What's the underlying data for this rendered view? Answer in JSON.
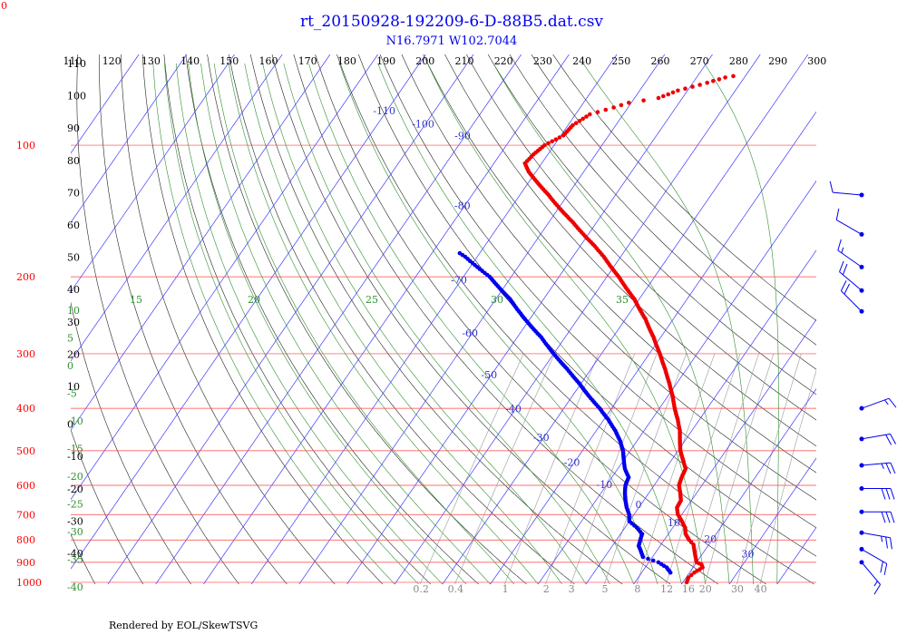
{
  "chart_data": {
    "type": "skew-t",
    "title": "rt_20150928-192209-6-D-88B5.dat.csv",
    "subtitle": "N16.7971 W102.7044",
    "footer": "Rendered by EOL/SkewTSVG",
    "corner_label": "0",
    "pressure_levels_hpa": [
      100,
      200,
      300,
      400,
      500,
      600,
      700,
      800,
      900,
      1000
    ],
    "pressure_tick_labels": [
      "100",
      "200",
      "300",
      "400",
      "500",
      "600",
      "700",
      "800",
      "900",
      "1000"
    ],
    "theta_tick_labels": [
      "110",
      "120",
      "130",
      "140",
      "150",
      "160",
      "170",
      "180",
      "190",
      "200",
      "210",
      "220",
      "230",
      "240",
      "250",
      "260",
      "270",
      "280",
      "290",
      "300"
    ],
    "temperature_isotherm_labels": [
      "-110",
      "-100",
      "-90",
      "-80",
      "-70",
      "-60",
      "-50",
      "-40",
      "-30",
      "-20",
      "-10",
      "0",
      "10",
      "20",
      "30"
    ],
    "black_left_labels": [
      "110",
      "100",
      "90",
      "80",
      "70",
      "60",
      "50",
      "40",
      "30",
      "20",
      "10",
      "0",
      "-10",
      "-20",
      "-30",
      "-40"
    ],
    "moist_adiabat_labels": [
      "10",
      "5",
      "0",
      "-5",
      "-10",
      "-15",
      "-20",
      "-25",
      "-30",
      "-35",
      "-40"
    ],
    "moist_adiabat_top_labels": [
      "15",
      "20",
      "25",
      "30",
      "35"
    ],
    "mixing_ratio_labels": [
      "0.2",
      "0.4",
      "1",
      "2",
      "3",
      "5",
      "8",
      "12",
      "16",
      "20",
      "30",
      "40"
    ],
    "temperature_profile": [
      [
        1000,
        20.8
      ],
      [
        975,
        20.5
      ],
      [
        950,
        21.0
      ],
      [
        925,
        22.0
      ],
      [
        910,
        21.3
      ],
      [
        900,
        20.0
      ],
      [
        880,
        19.2
      ],
      [
        850,
        18.0
      ],
      [
        820,
        16.8
      ],
      [
        800,
        15.2
      ],
      [
        775,
        13.6
      ],
      [
        750,
        12.6
      ],
      [
        725,
        11.0
      ],
      [
        700,
        9.2
      ],
      [
        675,
        8.0
      ],
      [
        650,
        7.8
      ],
      [
        625,
        6.6
      ],
      [
        600,
        5.2
      ],
      [
        575,
        4.6
      ],
      [
        550,
        4.2
      ],
      [
        525,
        2.4
      ],
      [
        500,
        0.5
      ],
      [
        475,
        -1.0
      ],
      [
        450,
        -2.5
      ],
      [
        425,
        -4.5
      ],
      [
        400,
        -6.8
      ],
      [
        375,
        -9.0
      ],
      [
        350,
        -11.6
      ],
      [
        325,
        -14.5
      ],
      [
        300,
        -17.8
      ],
      [
        275,
        -21.5
      ],
      [
        250,
        -25.8
      ],
      [
        225,
        -31.0
      ],
      [
        200,
        -37.5
      ],
      [
        190,
        -40.5
      ],
      [
        180,
        -43.5
      ],
      [
        170,
        -47.0
      ],
      [
        160,
        -51.0
      ],
      [
        150,
        -55.0
      ],
      [
        140,
        -59.5
      ],
      [
        130,
        -64.0
      ],
      [
        120,
        -69.0
      ],
      [
        115,
        -71.5
      ],
      [
        110,
        -73.5
      ],
      [
        105,
        -73.0
      ],
      [
        100,
        -72.0
      ],
      [
        98,
        -71.0
      ],
      [
        95,
        -69.5
      ],
      [
        90,
        -69.0
      ],
      [
        85,
        -67.0
      ],
      [
        82,
        -63.0
      ],
      [
        80,
        -60.5
      ],
      [
        78,
        -55.0
      ],
      [
        75,
        -52.0
      ],
      [
        72,
        -47.0
      ],
      [
        70,
        -44.0
      ],
      [
        69,
        -41.0
      ]
    ],
    "dewpoint_profile": [
      [
        950,
        16.0
      ],
      [
        925,
        14.5
      ],
      [
        900,
        12.0
      ],
      [
        875,
        8.0
      ],
      [
        850,
        6.8
      ],
      [
        825,
        5.5
      ],
      [
        800,
        5.0
      ],
      [
        775,
        4.5
      ],
      [
        750,
        2.5
      ],
      [
        725,
        0.0
      ],
      [
        700,
        -1.0
      ],
      [
        675,
        -2.5
      ],
      [
        650,
        -3.8
      ],
      [
        625,
        -5.0
      ],
      [
        600,
        -6.0
      ],
      [
        575,
        -6.5
      ],
      [
        550,
        -8.5
      ],
      [
        525,
        -10.0
      ],
      [
        500,
        -11.5
      ],
      [
        475,
        -13.5
      ],
      [
        450,
        -16.0
      ],
      [
        425,
        -19.0
      ],
      [
        400,
        -22.5
      ],
      [
        375,
        -26.5
      ],
      [
        350,
        -30.5
      ],
      [
        325,
        -35.0
      ],
      [
        300,
        -40.0
      ],
      [
        275,
        -45.0
      ],
      [
        250,
        -51.0
      ],
      [
        225,
        -57.0
      ],
      [
        210,
        -61.5
      ],
      [
        200,
        -64.5
      ],
      [
        190,
        -68.5
      ],
      [
        180,
        -72.5
      ],
      [
        175,
        -75.0
      ]
    ],
    "wind_barbs": [
      {
        "pressure": 130,
        "direction": 275,
        "speed": 10
      },
      {
        "pressure": 160,
        "direction": 300,
        "speed": 10
      },
      {
        "pressure": 190,
        "direction": 305,
        "speed": 15
      },
      {
        "pressure": 215,
        "direction": 310,
        "speed": 20
      },
      {
        "pressure": 240,
        "direction": 315,
        "speed": 20
      },
      {
        "pressure": 400,
        "direction": 70,
        "speed": 15
      },
      {
        "pressure": 470,
        "direction": 80,
        "speed": 20
      },
      {
        "pressure": 540,
        "direction": 85,
        "speed": 25
      },
      {
        "pressure": 610,
        "direction": 90,
        "speed": 30
      },
      {
        "pressure": 690,
        "direction": 90,
        "speed": 30
      },
      {
        "pressure": 770,
        "direction": 100,
        "speed": 25
      },
      {
        "pressure": 840,
        "direction": 120,
        "speed": 20
      },
      {
        "pressure": 900,
        "direction": 140,
        "speed": 15
      }
    ],
    "grid": true
  }
}
